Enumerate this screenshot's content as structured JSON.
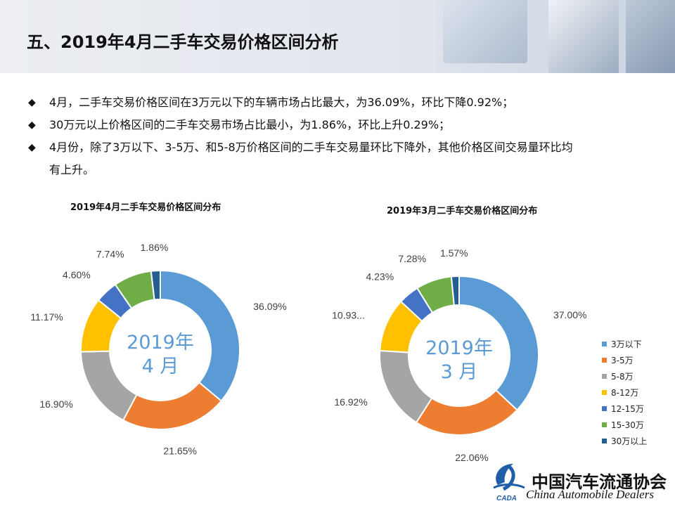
{
  "title": "五、2019年4月二手车交易价格区间分析",
  "bullets": [
    {
      "line1": "4月，二手车交易价格区间在3万元以下的车辆市场占比最大，为36.09%，环比下降0.92%；"
    },
    {
      "line1": "30万元以上价格区间的二手车交易市场占比最小，为1.86%，环比上升0.29%；"
    },
    {
      "line1": "4月份，除了3万以下、3-5万、和5-8万价格区间的二手车交易量环比下降外，其他价格区间交易量环比均",
      "line2": "有上升。"
    }
  ],
  "bullet_mark": "◆",
  "legend": [
    "3万以下",
    "3-5万",
    "5-8万",
    "8-12万",
    "12-15万",
    "15-30万",
    "30万以上"
  ],
  "colors": [
    "#5b9bd5",
    "#ed7d31",
    "#a5a5a5",
    "#ffc000",
    "#4472c4",
    "#70ad47",
    "#255e91"
  ],
  "logo": {
    "cn": "中国汽车流通协会",
    "en": "China Automobile Dealers",
    "mark": "CADA"
  },
  "chart_data": [
    {
      "type": "pie",
      "title": "2019年4月二手车交易价格区间分布",
      "center_line1": "2019年",
      "center_line2": "4 月",
      "categories": [
        "3万以下",
        "3-5万",
        "5-8万",
        "8-12万",
        "12-15万",
        "15-30万",
        "30万以上"
      ],
      "values": [
        36.09,
        21.65,
        16.9,
        11.17,
        4.6,
        7.74,
        1.86
      ],
      "labels": [
        "36.09%",
        "21.65%",
        "16.90%",
        "11.17%",
        "4.60%",
        "7.74%",
        "1.86%"
      ]
    },
    {
      "type": "pie",
      "title": "2019年3月二手车交易价格区间分布",
      "center_line1": "2019年",
      "center_line2": "3 月",
      "categories": [
        "3万以下",
        "3-5万",
        "5-8万",
        "8-12万",
        "12-15万",
        "15-30万",
        "30万以上"
      ],
      "values": [
        37.0,
        22.06,
        16.92,
        10.93,
        4.23,
        7.28,
        1.57
      ],
      "labels": [
        "37.00%",
        "22.06%",
        "16.92%",
        "10.93...",
        "4.23%",
        "7.28%",
        "1.57%"
      ]
    }
  ]
}
